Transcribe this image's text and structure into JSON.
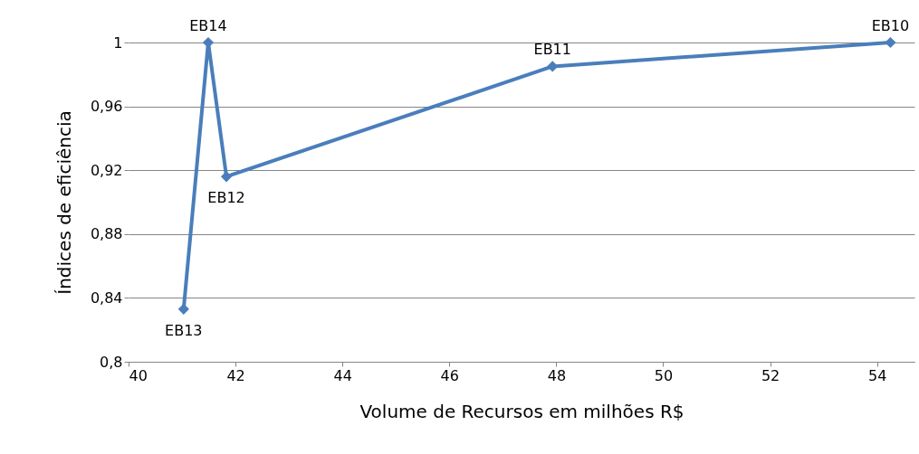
{
  "chart_data": {
    "type": "line",
    "xlabel": "Volume de Recursos em milhões R$",
    "ylabel": "Índices de eficiência",
    "x": [
      41.03,
      41.49,
      41.83,
      47.93,
      54.25
    ],
    "series": [
      {
        "color": "#4a7ebb",
        "values": [
          0.833,
          1,
          0.916,
          0.985,
          1
        ]
      }
    ],
    "xlim": [
      40,
      54.7
    ],
    "xticks": [
      40,
      42,
      44,
      46,
      48,
      50,
      52,
      54
    ],
    "ylim": [
      0.8,
      1.0
    ],
    "yticks": [
      {
        "value": 0.8,
        "label": "0,8"
      },
      {
        "value": 0.84,
        "label": "0,84"
      },
      {
        "value": 0.88,
        "label": "0,88"
      },
      {
        "value": 0.92,
        "label": "0,92"
      },
      {
        "value": 0.96,
        "label": "0,96"
      },
      {
        "value": 1,
        "label": "1"
      }
    ],
    "grid": "y",
    "legend": false,
    "marker": "diamond",
    "line_style": "solid",
    "annotations": [
      {
        "text": "EB13",
        "x": 41.03,
        "y": 0.833
      },
      {
        "text": "EB14",
        "x": 41.49,
        "y": 1
      },
      {
        "text": "EB12",
        "x": 41.83,
        "y": 0.916
      },
      {
        "text": "EB11",
        "x": 47.93,
        "y": 0.985
      },
      {
        "text": "EB10",
        "x": 54.25,
        "y": 1
      }
    ]
  }
}
